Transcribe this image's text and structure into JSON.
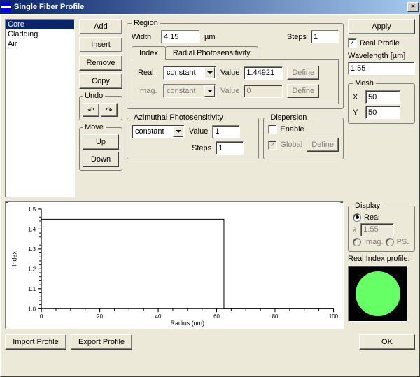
{
  "window": {
    "title": "Single Fiber Profile"
  },
  "layers": {
    "items": [
      "Core",
      "Cladding",
      "Air"
    ],
    "selected_index": 0
  },
  "buttons": {
    "add": "Add",
    "insert": "Insert",
    "remove": "Remove",
    "copy": "Copy",
    "undo_label": "Undo",
    "move_label": "Move",
    "up": "Up",
    "down": "Down",
    "apply": "Apply",
    "define": "Define",
    "import": "Import Profile",
    "export": "Export Profile",
    "ok": "OK"
  },
  "region": {
    "legend": "Region",
    "width_label": "Width",
    "width_value": "4.15",
    "width_unit": "µm",
    "steps_label": "Steps",
    "steps_value": "1",
    "tabs": {
      "index": "Index",
      "radial": "Radial Photosensitivity"
    },
    "real_label": "Real",
    "real_mode": "constant",
    "real_value_label": "Value",
    "real_value": "1.44921",
    "imag_label": "Imag.",
    "imag_mode": "constant",
    "imag_value_label": "Value",
    "imag_value": "0"
  },
  "azimuthal": {
    "legend": "Azimuthal Photosensitivity",
    "mode": "constant",
    "value_label": "Value",
    "value": "1",
    "steps_label": "Steps",
    "steps_value": "1"
  },
  "dispersion": {
    "legend": "Dispersion",
    "enable_label": "Enable",
    "enable": false,
    "global_label": "Global",
    "global": true
  },
  "right": {
    "real_profile_label": "Real Profile",
    "real_profile": true,
    "wavelength_label": "Wavelength [µm]",
    "wavelength": "1.55",
    "mesh": {
      "legend": "Mesh",
      "x_label": "X",
      "x": "50",
      "y_label": "Y",
      "y": "50"
    },
    "display": {
      "legend": "Display",
      "real_label": "Real",
      "lambda_symbol": "λ",
      "lambda_value": "1.55",
      "imag_label": "Imag.",
      "ps_label": "PS.",
      "selected": "real"
    },
    "preview_label": "Real Index profile:",
    "preview_color": "#66ff66"
  },
  "chart": {
    "type": "line",
    "xlabel": "Radius (um)",
    "ylabel": "Index",
    "label_fontsize": 9,
    "xlim": [
      0,
      100
    ],
    "xtick_step": 20,
    "ylim": [
      1.0,
      1.5
    ],
    "ytick_step": 0.1,
    "background_color": "#ffffff",
    "axis_color": "#000000",
    "series": [
      {
        "color": "#000000",
        "line_width": 1,
        "points": [
          [
            0,
            1.44921
          ],
          [
            62.5,
            1.44921
          ],
          [
            62.5,
            1.0
          ],
          [
            100,
            1.0
          ]
        ]
      }
    ]
  }
}
